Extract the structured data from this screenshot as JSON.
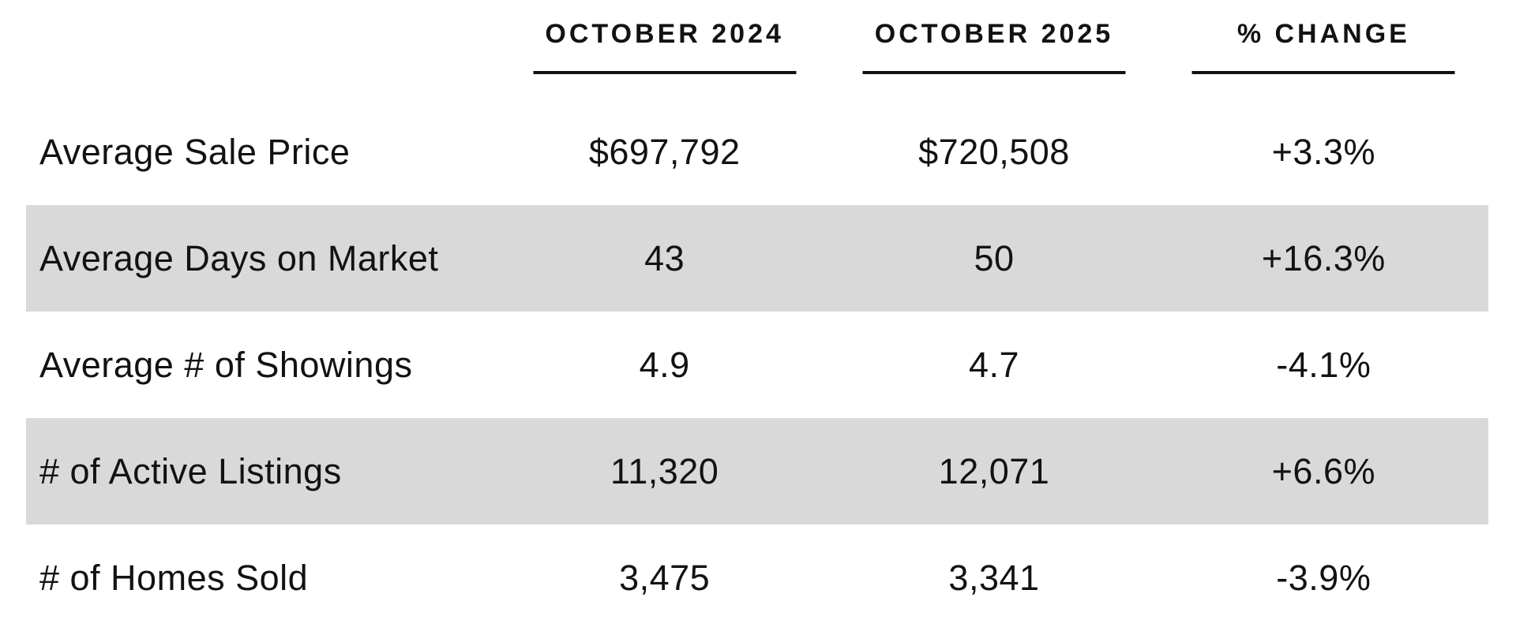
{
  "chart_data": {
    "type": "table",
    "columns": [
      "OCTOBER 2024",
      "OCTOBER 2025",
      "% CHANGE"
    ],
    "rows": [
      {
        "label": "Average Sale Price",
        "cells": [
          "$697,792",
          "$720,508",
          "+3.3%"
        ]
      },
      {
        "label": "Average Days on Market",
        "cells": [
          "43",
          "50",
          "+16.3%"
        ]
      },
      {
        "label": "Average # of Showings",
        "cells": [
          "4.9",
          "4.7",
          "-4.1%"
        ]
      },
      {
        "label": "# of Active Listings",
        "cells": [
          "11,320",
          "12,071",
          "+6.6%"
        ]
      },
      {
        "label": "# of Homes Sold",
        "cells": [
          "3,475",
          "3,341",
          "-3.9%"
        ]
      }
    ],
    "layout": {
      "striped_row_indexes": [
        1,
        3
      ],
      "legend": "none",
      "grid": "off"
    }
  },
  "colors": {
    "row_stripe": "#d9d9d9",
    "text": "#121212",
    "background": "#ffffff"
  }
}
